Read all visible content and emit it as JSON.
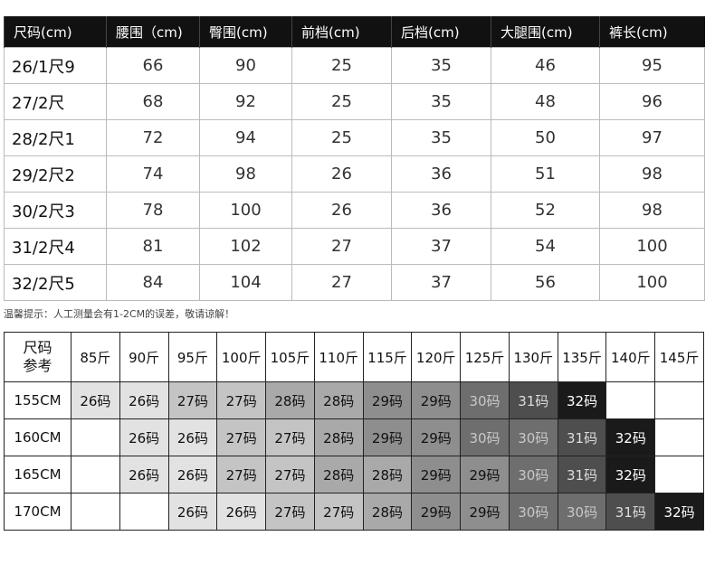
{
  "size_table": {
    "headers": [
      "尺码(cm)",
      "腰围（cm)",
      "臀围(cm)",
      "前档(cm)",
      "后档(cm)",
      "大腿围(cm)",
      "裤长(cm)"
    ],
    "rows": [
      [
        "26/1尺9",
        "66",
        "90",
        "25",
        "35",
        "46",
        "95"
      ],
      [
        "27/2尺",
        "68",
        "92",
        "25",
        "35",
        "48",
        "96"
      ],
      [
        "28/2尺1",
        "72",
        "94",
        "25",
        "35",
        "50",
        "97"
      ],
      [
        "29/2尺2",
        "74",
        "98",
        "26",
        "36",
        "51",
        "98"
      ],
      [
        "30/2尺3",
        "78",
        "100",
        "26",
        "36",
        "52",
        "98"
      ],
      [
        "31/2尺4",
        "81",
        "102",
        "27",
        "37",
        "54",
        "100"
      ],
      [
        "32/2尺5",
        "84",
        "104",
        "27",
        "37",
        "56",
        "100"
      ]
    ]
  },
  "note": "温馨提示：人工测量会有1-2CM的误差，敬请谅解！",
  "ref_table": {
    "corner": "尺码\n参考",
    "weights": [
      "85斤",
      "90斤",
      "95斤",
      "100斤",
      "105斤",
      "110斤",
      "115斤",
      "120斤",
      "125斤",
      "130斤",
      "135斤",
      "140斤",
      "145斤"
    ],
    "rows": [
      {
        "height": "155CM",
        "cells": [
          "26码",
          "26码",
          "27码",
          "27码",
          "28码",
          "28码",
          "29码",
          "29码",
          "30码",
          "31码",
          "32码",
          "",
          ""
        ]
      },
      {
        "height": "160CM",
        "cells": [
          "",
          "26码",
          "26码",
          "27码",
          "27码",
          "28码",
          "29码",
          "29码",
          "30码",
          "30码",
          "31码",
          "32码",
          ""
        ]
      },
      {
        "height": "165CM",
        "cells": [
          "",
          "26码",
          "26码",
          "27码",
          "27码",
          "28码",
          "28码",
          "29码",
          "29码",
          "30码",
          "31码",
          "32码",
          ""
        ]
      },
      {
        "height": "170CM",
        "cells": [
          "",
          "",
          "26码",
          "26码",
          "27码",
          "27码",
          "28码",
          "29码",
          "29码",
          "30码",
          "30码",
          "31码",
          "32码"
        ]
      }
    ]
  },
  "size_colors": {
    "26码": [
      "#e2e2e2",
      "#111"
    ],
    "27码": [
      "#c4c4c4",
      "#111"
    ],
    "28码": [
      "#a9a9a9",
      "#111"
    ],
    "29码": [
      "#8e8e8e",
      "#111"
    ],
    "30码": [
      "#6e6e6e",
      "#c8c8c8"
    ],
    "31码": [
      "#4e4e4e",
      "#ddd"
    ],
    "32码": [
      "#1a1a1a",
      "#fff"
    ]
  }
}
